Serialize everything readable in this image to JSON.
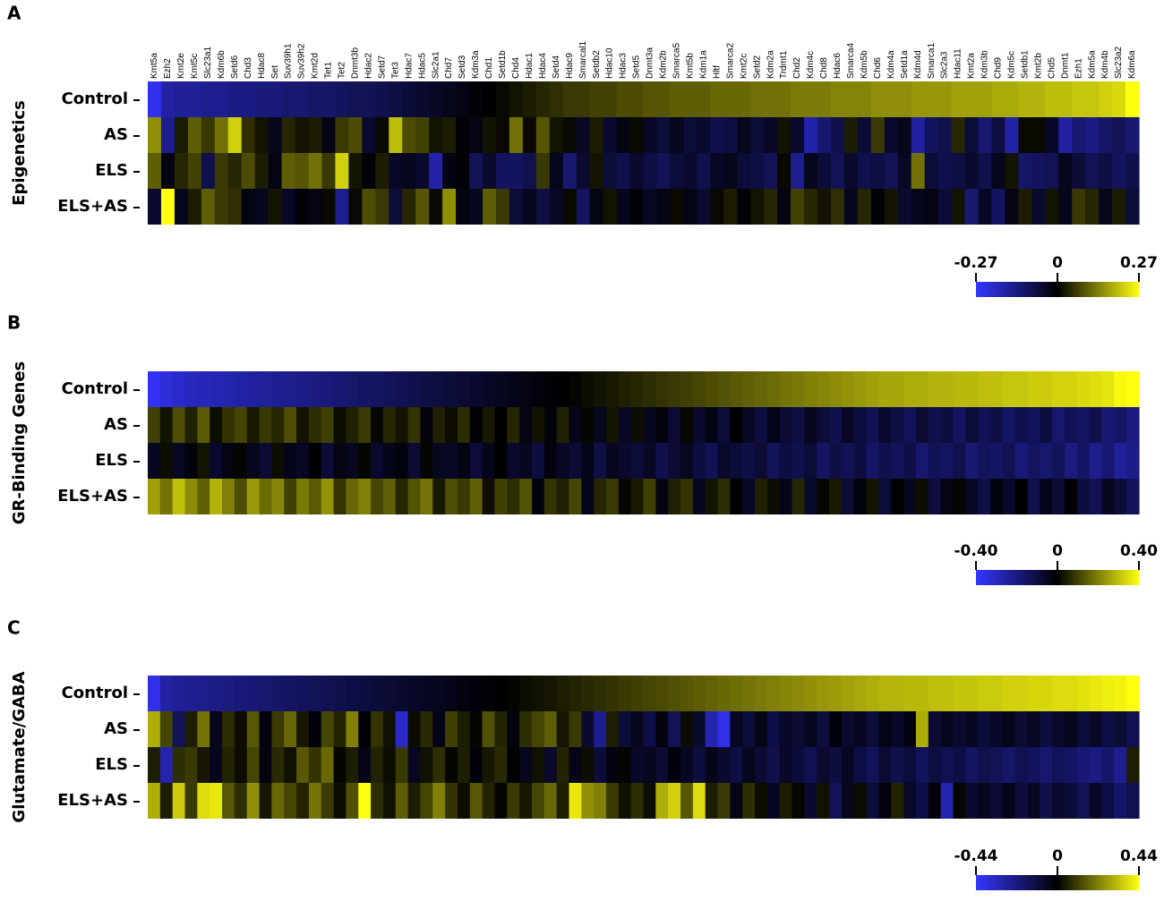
{
  "chart_data": [
    {
      "type": "heatmap",
      "panel": "A",
      "ylabel": "Epigenetics",
      "categories": [
        "Kmt5a",
        "Ezh2",
        "Kmt2e",
        "Kmt5c",
        "Slc23a1",
        "Kdm6b",
        "Setd6",
        "Chd3",
        "Hdac8",
        "Set",
        "Suv39h1",
        "Suv39h2",
        "Kmt2d",
        "Tet1",
        "Tet2",
        "Dnmt3b",
        "Hdac2",
        "Setd7",
        "Tet3",
        "Hdac7",
        "Hdac5",
        "Slc2a1",
        "Chd7",
        "Setd3",
        "Kdm3a",
        "Chd1",
        "Setd1b",
        "Chd4",
        "Hdac1",
        "Hdac4",
        "Setd4",
        "Hdac9",
        "Smarcal1",
        "Setdb2",
        "Hdac10",
        "Hdac3",
        "Setd5",
        "Dnmt3a",
        "Kdm2b",
        "Smarca5",
        "Kmt5b",
        "Kdm1a",
        "Hltf",
        "Smarca2",
        "Kmt2c",
        "Setd2",
        "Kdm2a",
        "Trdmt1",
        "Chd2",
        "Kdm4c",
        "Chd8",
        "Hdac6",
        "Smarca4",
        "Kdm5b",
        "Chd6",
        "Kdm4a",
        "Setd1a",
        "Kdm4d",
        "Smarca1",
        "Slc2a3",
        "Hdac11",
        "Kmt2a",
        "Kdm3b",
        "Chd9",
        "Kdm5c",
        "Setdb1",
        "Kmt2b",
        "Chd5",
        "Dnmt1",
        "Ezh1",
        "Kdm5a",
        "Kdm4b",
        "Slc23a2",
        "Kdm6a"
      ],
      "rows": [
        "Control",
        "AS",
        "ELS",
        "ELS+AS"
      ],
      "values": [
        [
          -0.25,
          -0.17,
          -0.16,
          -0.16,
          -0.15,
          -0.15,
          -0.14,
          -0.14,
          -0.13,
          -0.13,
          -0.12,
          -0.12,
          -0.11,
          -0.11,
          -0.1,
          -0.09,
          -0.09,
          -0.08,
          -0.07,
          -0.06,
          -0.05,
          -0.04,
          -0.03,
          -0.02,
          -0.01,
          0.0,
          0.01,
          0.02,
          0.03,
          0.04,
          0.05,
          0.06,
          0.06,
          0.07,
          0.07,
          0.08,
          0.08,
          0.09,
          0.09,
          0.1,
          0.1,
          0.1,
          0.11,
          0.11,
          0.11,
          0.12,
          0.12,
          0.12,
          0.13,
          0.13,
          0.13,
          0.14,
          0.14,
          0.14,
          0.15,
          0.15,
          0.15,
          0.16,
          0.16,
          0.16,
          0.17,
          0.17,
          0.17,
          0.18,
          0.18,
          0.19,
          0.19,
          0.2,
          0.2,
          0.21,
          0.21,
          0.22,
          0.23,
          0.27
        ],
        [
          0.15,
          -0.15,
          0.03,
          0.1,
          0.06,
          0.12,
          0.22,
          0.05,
          0.02,
          -0.03,
          0.04,
          0.02,
          0.03,
          -0.02,
          0.06,
          0.08,
          -0.05,
          0.01,
          0.2,
          0.08,
          0.07,
          0.02,
          0.03,
          -0.01,
          -0.02,
          0.02,
          0.01,
          0.12,
          0.01,
          0.09,
          0.02,
          0.01,
          -0.04,
          0.03,
          -0.05,
          -0.02,
          0.01,
          -0.04,
          -0.06,
          -0.03,
          -0.06,
          -0.05,
          -0.08,
          -0.07,
          -0.03,
          -0.06,
          -0.04,
          0.02,
          -0.05,
          -0.18,
          -0.12,
          -0.08,
          0.03,
          -0.06,
          0.06,
          -0.05,
          -0.03,
          -0.17,
          -0.1,
          -0.08,
          0.04,
          -0.06,
          -0.12,
          -0.07,
          -0.18,
          0.01,
          0.01,
          -0.04,
          -0.17,
          -0.12,
          -0.14,
          -0.11,
          -0.09,
          -0.12
        ],
        [
          0.1,
          -0.02,
          0.04,
          0.07,
          -0.08,
          0.06,
          0.04,
          0.08,
          0.03,
          -0.02,
          0.1,
          0.09,
          0.12,
          0.06,
          0.22,
          0.02,
          -0.01,
          0.03,
          -0.04,
          -0.03,
          -0.05,
          -0.18,
          -0.02,
          -0.01,
          -0.09,
          -0.05,
          -0.1,
          -0.1,
          -0.08,
          0.06,
          -0.03,
          -0.12,
          -0.05,
          0.02,
          -0.06,
          -0.08,
          -0.05,
          -0.07,
          -0.09,
          -0.06,
          -0.05,
          -0.08,
          -0.04,
          -0.03,
          -0.06,
          -0.07,
          -0.09,
          0.01,
          -0.15,
          -0.03,
          -0.06,
          -0.09,
          -0.05,
          -0.08,
          -0.07,
          -0.09,
          -0.04,
          0.12,
          -0.06,
          -0.08,
          -0.07,
          -0.05,
          -0.08,
          -0.03,
          0.02,
          -0.11,
          -0.1,
          -0.09,
          -0.03,
          -0.06,
          -0.09,
          -0.07,
          -0.1,
          -0.08
        ],
        [
          -0.05,
          0.27,
          -0.03,
          0.03,
          0.1,
          0.06,
          0.05,
          -0.02,
          -0.03,
          0.02,
          -0.04,
          -0.01,
          -0.02,
          0.01,
          -0.15,
          0.01,
          0.08,
          0.06,
          -0.06,
          0.04,
          0.09,
          0.01,
          0.15,
          -0.02,
          -0.03,
          0.1,
          0.06,
          -0.06,
          -0.03,
          -0.07,
          -0.04,
          0.01,
          -0.1,
          -0.02,
          0.02,
          -0.03,
          -0.01,
          -0.04,
          -0.02,
          0.01,
          -0.02,
          -0.05,
          0.01,
          0.03,
          -0.01,
          0.02,
          0.04,
          -0.02,
          0.07,
          0.04,
          0.02,
          0.05,
          -0.03,
          0.04,
          -0.01,
          0.02,
          -0.05,
          -0.03,
          -0.02,
          -0.06,
          0.02,
          -0.12,
          -0.04,
          -0.1,
          -0.02,
          0.03,
          -0.05,
          0.02,
          -0.03,
          0.06,
          0.04,
          -0.03,
          0.03,
          -0.06
        ]
      ],
      "zlim": [
        -0.27,
        0.27
      ],
      "zticks": [
        -0.27,
        0,
        0.27
      ],
      "colors": [
        "#3535ff",
        "#000000",
        "#ffff10"
      ]
    },
    {
      "type": "heatmap",
      "panel": "B",
      "ylabel": "GR-Binding Genes",
      "rows": [
        "Control",
        "AS",
        "ELS",
        "ELS+AS"
      ],
      "values": [
        [
          -0.38,
          -0.34,
          -0.32,
          -0.3,
          -0.29,
          -0.28,
          -0.27,
          -0.26,
          -0.25,
          -0.24,
          -0.23,
          -0.22,
          -0.21,
          -0.2,
          -0.19,
          -0.18,
          -0.17,
          -0.16,
          -0.15,
          -0.14,
          -0.13,
          -0.12,
          -0.11,
          -0.1,
          -0.09,
          -0.08,
          -0.07,
          -0.06,
          -0.05,
          -0.04,
          -0.03,
          -0.02,
          -0.01,
          0.0,
          0.01,
          0.02,
          0.03,
          0.04,
          0.05,
          0.06,
          0.07,
          0.08,
          0.09,
          0.1,
          0.11,
          0.12,
          0.13,
          0.14,
          0.15,
          0.16,
          0.17,
          0.18,
          0.19,
          0.2,
          0.21,
          0.22,
          0.23,
          0.24,
          0.25,
          0.26,
          0.26,
          0.27,
          0.27,
          0.28,
          0.28,
          0.29,
          0.29,
          0.3,
          0.3,
          0.31,
          0.31,
          0.32,
          0.32,
          0.33,
          0.33,
          0.34,
          0.35,
          0.36,
          0.39,
          0.4
        ],
        [
          0.1,
          0.03,
          0.12,
          0.05,
          0.14,
          0.02,
          0.08,
          0.11,
          0.04,
          0.09,
          0.06,
          0.12,
          0.03,
          0.07,
          0.1,
          0.02,
          0.05,
          0.09,
          0.01,
          0.06,
          0.03,
          0.08,
          -0.02,
          0.05,
          0.02,
          0.07,
          -0.01,
          0.04,
          0.0,
          0.06,
          -0.03,
          0.03,
          -0.02,
          0.05,
          -0.04,
          0.01,
          -0.05,
          0.03,
          -0.06,
          0.02,
          -0.05,
          -0.02,
          -0.08,
          0.01,
          -0.07,
          -0.03,
          -0.09,
          0.0,
          -0.06,
          -0.1,
          -0.04,
          -0.08,
          -0.11,
          -0.05,
          -0.09,
          -0.12,
          -0.06,
          -0.1,
          -0.13,
          -0.07,
          -0.11,
          -0.14,
          -0.08,
          -0.12,
          -0.1,
          -0.15,
          -0.09,
          -0.13,
          -0.11,
          -0.16,
          -0.12,
          -0.14,
          -0.1,
          -0.17,
          -0.13,
          -0.15,
          -0.12,
          -0.18,
          -0.16,
          -0.2
        ],
        [
          -0.05,
          0.02,
          -0.06,
          -0.02,
          0.03,
          -0.07,
          -0.03,
          0.01,
          -0.05,
          -0.08,
          0.02,
          -0.04,
          -0.06,
          0.0,
          -0.09,
          -0.03,
          -0.05,
          0.01,
          -0.07,
          -0.04,
          -0.02,
          -0.08,
          0.01,
          -0.05,
          -0.06,
          -0.03,
          -0.09,
          -0.04,
          0.0,
          -0.07,
          -0.05,
          -0.1,
          -0.02,
          -0.06,
          -0.08,
          -0.04,
          -0.11,
          -0.05,
          -0.07,
          -0.09,
          -0.06,
          -0.12,
          -0.08,
          -0.05,
          -0.1,
          -0.13,
          -0.07,
          -0.09,
          -0.11,
          -0.08,
          -0.14,
          -0.1,
          -0.12,
          -0.09,
          -0.15,
          -0.11,
          -0.13,
          -0.1,
          -0.16,
          -0.12,
          -0.14,
          -0.11,
          -0.17,
          -0.13,
          -0.15,
          -0.12,
          -0.18,
          -0.14,
          -0.16,
          -0.13,
          -0.19,
          -0.15,
          -0.17,
          -0.14,
          -0.2,
          -0.16,
          -0.22,
          -0.18,
          -0.24,
          -0.21
        ],
        [
          0.25,
          0.18,
          0.3,
          0.22,
          0.15,
          0.28,
          0.2,
          0.12,
          0.24,
          0.17,
          0.21,
          0.1,
          0.19,
          0.14,
          0.23,
          0.08,
          0.16,
          0.2,
          0.11,
          0.15,
          0.06,
          0.13,
          0.18,
          0.04,
          0.12,
          0.09,
          0.15,
          0.02,
          0.1,
          0.07,
          0.13,
          -0.02,
          0.08,
          0.05,
          0.11,
          -0.04,
          0.06,
          0.09,
          0.01,
          0.04,
          0.1,
          -0.03,
          0.05,
          0.08,
          -0.05,
          0.03,
          0.07,
          0.0,
          -0.06,
          0.05,
          0.02,
          -0.04,
          0.06,
          -0.07,
          0.01,
          0.04,
          -0.08,
          -0.02,
          0.03,
          -0.09,
          0.0,
          -0.05,
          0.02,
          -0.1,
          -0.03,
          0.01,
          -0.06,
          -0.11,
          -0.02,
          -0.07,
          0.0,
          -0.12,
          -0.04,
          -0.08,
          -0.01,
          -0.1,
          -0.13,
          -0.05,
          -0.09,
          -0.14
        ]
      ],
      "zlim": [
        -0.4,
        0.4
      ],
      "zticks": [
        {
          "value": -0.4,
          "label": "-0.40"
        },
        0,
        {
          "value": 0.4,
          "label": "0.40"
        }
      ],
      "colors": [
        "#3535ff",
        "#000000",
        "#ffff10"
      ]
    },
    {
      "type": "heatmap",
      "panel": "C",
      "ylabel": "Glutamate/GABA",
      "rows": [
        "Control",
        "AS",
        "ELS",
        "ELS+AS"
      ],
      "values": [
        [
          -0.4,
          -0.28,
          -0.26,
          -0.25,
          -0.24,
          -0.23,
          -0.22,
          -0.21,
          -0.2,
          -0.19,
          -0.18,
          -0.17,
          -0.16,
          -0.15,
          -0.14,
          -0.13,
          -0.12,
          -0.11,
          -0.1,
          -0.09,
          -0.08,
          -0.07,
          -0.06,
          -0.05,
          -0.04,
          -0.03,
          -0.02,
          -0.01,
          0.0,
          0.01,
          0.02,
          0.03,
          0.04,
          0.05,
          0.06,
          0.07,
          0.08,
          0.09,
          0.1,
          0.11,
          0.12,
          0.13,
          0.14,
          0.15,
          0.16,
          0.17,
          0.18,
          0.19,
          0.2,
          0.21,
          0.22,
          0.23,
          0.24,
          0.25,
          0.26,
          0.27,
          0.28,
          0.29,
          0.3,
          0.31,
          0.31,
          0.32,
          0.32,
          0.33,
          0.33,
          0.34,
          0.34,
          0.35,
          0.35,
          0.36,
          0.36,
          0.37,
          0.37,
          0.38,
          0.38,
          0.39,
          0.4,
          0.41,
          0.42,
          0.44
        ],
        [
          0.3,
          0.12,
          -0.15,
          0.05,
          0.2,
          -0.05,
          0.08,
          0.02,
          0.15,
          -0.03,
          0.1,
          0.18,
          0.04,
          -0.02,
          0.12,
          0.06,
          0.22,
          -0.01,
          0.09,
          0.03,
          -0.35,
          0.02,
          0.07,
          -0.04,
          0.11,
          0.05,
          0.01,
          0.14,
          0.06,
          -0.03,
          0.08,
          0.12,
          0.16,
          0.04,
          0.1,
          -0.08,
          -0.25,
          0.05,
          -0.1,
          -0.05,
          -0.12,
          -0.03,
          -0.15,
          0.02,
          -0.08,
          -0.3,
          -0.4,
          -0.06,
          -0.1,
          -0.04,
          -0.12,
          -0.07,
          -0.09,
          -0.05,
          -0.11,
          -0.02,
          -0.08,
          -0.06,
          -0.1,
          -0.04,
          -0.07,
          -0.03,
          0.3,
          -0.09,
          -0.05,
          -0.08,
          -0.06,
          -0.1,
          -0.07,
          -0.04,
          -0.09,
          -0.06,
          -0.11,
          -0.08,
          -0.05,
          -0.1,
          -0.07,
          -0.12,
          -0.09,
          -0.14
        ],
        [
          0.05,
          -0.3,
          0.08,
          0.1,
          0.04,
          -0.05,
          0.06,
          0.02,
          0.12,
          -0.03,
          0.07,
          0.03,
          0.15,
          0.09,
          0.18,
          0.01,
          0.05,
          -0.04,
          0.06,
          0.02,
          0.1,
          -0.06,
          0.03,
          0.08,
          0.01,
          0.05,
          -0.02,
          0.04,
          0.07,
          0.0,
          -0.05,
          0.03,
          -0.08,
          0.06,
          -0.04,
          0.02,
          -0.1,
          -0.03,
          0.01,
          -0.07,
          -0.05,
          -0.09,
          -0.02,
          -0.06,
          -0.11,
          -0.04,
          -0.08,
          -0.12,
          -0.05,
          -0.09,
          -0.13,
          -0.07,
          -0.1,
          -0.14,
          -0.08,
          -0.11,
          -0.06,
          -0.12,
          -0.15,
          -0.09,
          -0.13,
          -0.1,
          -0.16,
          -0.11,
          -0.14,
          -0.12,
          -0.17,
          -0.13,
          -0.15,
          -0.18,
          -0.14,
          -0.16,
          -0.19,
          -0.15,
          -0.17,
          -0.2,
          -0.22,
          -0.18,
          -0.25,
          0.05
        ],
        [
          0.3,
          0.05,
          0.35,
          0.1,
          0.38,
          0.4,
          0.15,
          0.08,
          0.25,
          0.04,
          0.18,
          0.12,
          0.06,
          0.2,
          0.1,
          0.02,
          0.14,
          0.44,
          0.08,
          0.03,
          0.16,
          0.05,
          0.12,
          0.22,
          0.09,
          0.02,
          0.15,
          0.06,
          0.01,
          0.1,
          0.04,
          0.12,
          0.18,
          0.05,
          0.4,
          0.25,
          0.22,
          0.1,
          0.03,
          0.08,
          0.02,
          0.3,
          0.36,
          0.15,
          0.38,
          0.05,
          0.1,
          -0.04,
          0.08,
          0.02,
          -0.06,
          0.05,
          0.01,
          -0.08,
          0.03,
          -0.15,
          -0.05,
          0.02,
          -0.1,
          -0.03,
          0.06,
          -0.07,
          -0.12,
          -0.02,
          -0.3,
          0.01,
          -0.08,
          -0.05,
          -0.09,
          -0.04,
          -0.11,
          -0.06,
          -0.13,
          -0.08,
          -0.1,
          -0.15,
          -0.07,
          -0.12,
          -0.18,
          -0.14
        ]
      ],
      "zlim": [
        -0.44,
        0.44
      ],
      "zticks": [
        -0.44,
        0,
        0.44
      ],
      "colors": [
        "#3535ff",
        "#000000",
        "#ffff10"
      ]
    }
  ]
}
